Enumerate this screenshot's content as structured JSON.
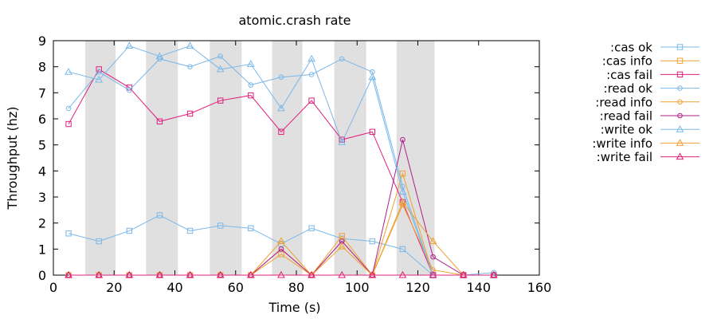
{
  "chart_data": {
    "type": "line",
    "title": "atomic.crash rate",
    "xlabel": "Time (s)",
    "ylabel": "Throughput (hz)",
    "xlim": [
      0,
      160
    ],
    "ylim": [
      0,
      9
    ],
    "xticks": [
      0,
      20,
      40,
      60,
      80,
      100,
      120,
      140,
      160
    ],
    "yticks": [
      0,
      1,
      2,
      3,
      4,
      5,
      6,
      7,
      8,
      9
    ],
    "grid": false,
    "legend_position": "right",
    "shaded_intervals": [
      [
        10.5,
        20.5
      ],
      [
        30.5,
        41
      ],
      [
        51.5,
        62
      ],
      [
        72,
        82
      ],
      [
        92.5,
        103
      ],
      [
        113,
        125.5
      ]
    ],
    "series": [
      {
        "name": ":cas ok",
        "color": "#7ab8ea",
        "marker": "square",
        "x": [
          5,
          15,
          25,
          35,
          45,
          55,
          65,
          75,
          85,
          95,
          105,
          115,
          125,
          135,
          145
        ],
        "y": [
          1.6,
          1.3,
          1.7,
          2.3,
          1.7,
          1.9,
          1.8,
          1.2,
          1.8,
          1.4,
          1.3,
          1.0,
          0,
          0,
          0
        ]
      },
      {
        "name": ":cas info",
        "color": "#f0a030",
        "marker": "square",
        "x": [
          5,
          15,
          25,
          35,
          45,
          55,
          65,
          75,
          85,
          95,
          105,
          115,
          125,
          135,
          145
        ],
        "y": [
          0,
          0,
          0,
          0,
          0,
          0,
          0,
          0.8,
          0,
          1.5,
          0,
          3.9,
          0,
          0,
          0
        ]
      },
      {
        "name": ":cas fail",
        "color": "#e0207a",
        "marker": "square",
        "x": [
          5,
          15,
          25,
          35,
          45,
          55,
          65,
          75,
          85,
          95,
          105,
          115,
          125,
          135,
          145
        ],
        "y": [
          5.8,
          7.9,
          7.2,
          5.9,
          6.2,
          6.7,
          6.9,
          5.5,
          6.7,
          5.2,
          5.5,
          2.8,
          0,
          0,
          0
        ]
      },
      {
        "name": ":read ok",
        "color": "#7ab8ea",
        "marker": "circle",
        "x": [
          5,
          15,
          25,
          35,
          45,
          55,
          65,
          75,
          85,
          95,
          105,
          115,
          125,
          135,
          145
        ],
        "y": [
          6.4,
          7.8,
          7.1,
          8.3,
          8.0,
          8.4,
          7.3,
          7.6,
          7.7,
          8.3,
          7.8,
          3.4,
          0,
          0,
          0.1
        ]
      },
      {
        "name": ":read info",
        "color": "#f0a030",
        "marker": "circle",
        "x": [
          5,
          15,
          25,
          35,
          45,
          55,
          65,
          75,
          85,
          95,
          105,
          115,
          125,
          135,
          145
        ],
        "y": [
          0,
          0,
          0,
          0,
          0,
          0,
          0,
          1.0,
          0,
          1.3,
          0,
          2.7,
          0.2,
          0,
          0
        ]
      },
      {
        "name": ":read fail",
        "color": "#b0208a",
        "marker": "circle",
        "x": [
          5,
          15,
          25,
          35,
          45,
          55,
          65,
          75,
          85,
          95,
          105,
          115,
          125,
          135,
          145
        ],
        "y": [
          0,
          0,
          0,
          0,
          0,
          0,
          0,
          1.0,
          0,
          1.3,
          0,
          5.2,
          0.7,
          0,
          0
        ]
      },
      {
        "name": ":write ok",
        "color": "#7ab8ea",
        "marker": "triangle",
        "x": [
          5,
          15,
          25,
          35,
          45,
          55,
          65,
          75,
          85,
          95,
          105,
          115,
          125,
          135,
          145
        ],
        "y": [
          7.8,
          7.5,
          8.8,
          8.4,
          8.8,
          7.9,
          8.1,
          6.4,
          8.3,
          5.1,
          7.6,
          3.2,
          0,
          0,
          0
        ]
      },
      {
        "name": ":write info",
        "color": "#f0a030",
        "marker": "triangle",
        "x": [
          5,
          15,
          25,
          35,
          45,
          55,
          65,
          75,
          85,
          95,
          105,
          115,
          125,
          135,
          145
        ],
        "y": [
          0,
          0,
          0,
          0,
          0,
          0,
          0,
          1.3,
          0,
          1.1,
          0,
          2.8,
          1.3,
          0,
          0
        ]
      },
      {
        "name": ":write fail",
        "color": "#e0207a",
        "marker": "triangle",
        "x": [
          5,
          15,
          25,
          35,
          45,
          55,
          65,
          75,
          85,
          95,
          105,
          115,
          125,
          135,
          145
        ],
        "y": [
          0,
          0,
          0,
          0,
          0,
          0,
          0,
          0,
          0,
          0,
          0,
          0,
          0,
          0,
          0
        ]
      }
    ]
  }
}
